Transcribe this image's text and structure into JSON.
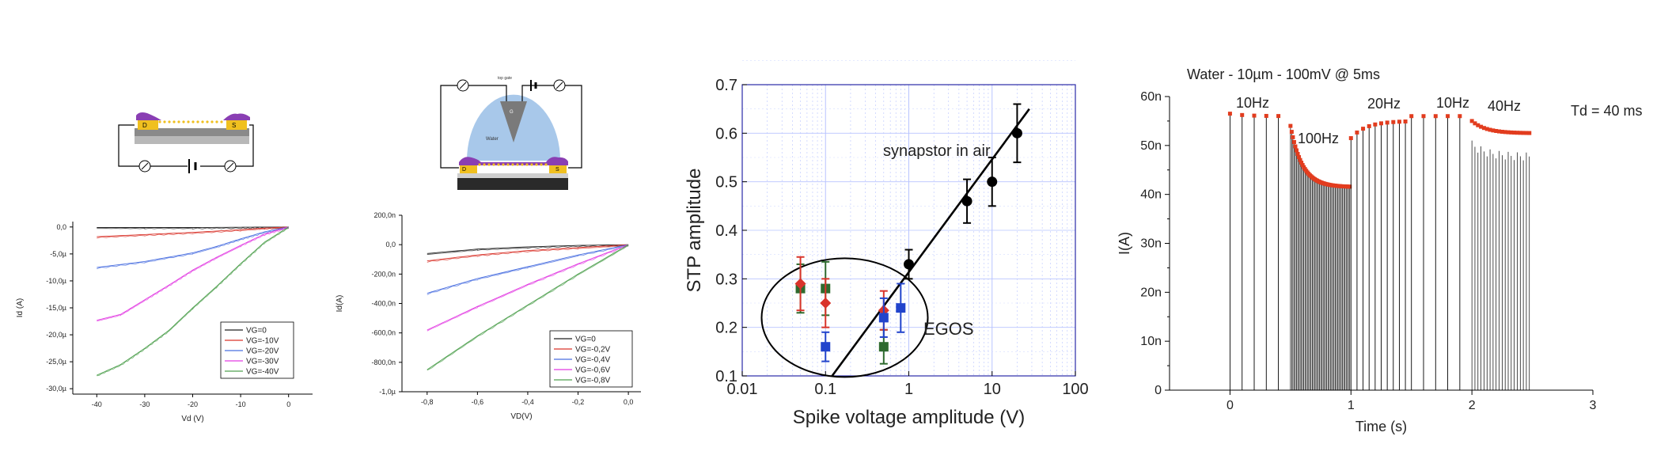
{
  "chart_data": [
    {
      "type": "line",
      "panel": "A",
      "schematic": {
        "electrode_labels": [
          "D",
          "S"
        ]
      },
      "xlabel": "Vd (V)",
      "ylabel": "Id (A)",
      "xlim": [
        -45,
        5
      ],
      "ylim": [
        -31,
        1
      ],
      "xticks": [
        -40,
        -30,
        -20,
        -10,
        0
      ],
      "xtick_labels": [
        "-40",
        "-30",
        "-20",
        "-10",
        "0"
      ],
      "yticks": [
        0,
        -5,
        -10,
        -15,
        -20,
        -25,
        -30
      ],
      "ytick_labels": [
        "0,0",
        "-5,0µ",
        "-10,0µ",
        "-15,0µ",
        "-20,0µ",
        "-25,0µ",
        "-30,0µ"
      ],
      "legend_position": "bottom-right",
      "grid": false,
      "series": [
        {
          "name": "VG=0",
          "color": "#222222",
          "x": [
            -40,
            -30,
            -20,
            -10,
            -5,
            0
          ],
          "y": [
            -0.1,
            -0.1,
            -0.1,
            -0.05,
            -0.02,
            0
          ]
        },
        {
          "name": "VG=-10V",
          "color": "#d9342b",
          "x": [
            -40,
            -30,
            -20,
            -10,
            -5,
            0
          ],
          "y": [
            -1.8,
            -1.4,
            -1.0,
            -0.5,
            -0.2,
            0
          ]
        },
        {
          "name": "VG=-20V",
          "color": "#4a6fe0",
          "x": [
            -40,
            -30,
            -20,
            -15,
            -10,
            -5,
            0
          ],
          "y": [
            -7.5,
            -6.4,
            -4.8,
            -3.6,
            -2.2,
            -0.9,
            0
          ]
        },
        {
          "name": "VG=-30V",
          "color": "#e23ae2",
          "x": [
            -40,
            -35,
            -30,
            -25,
            -20,
            -15,
            -10,
            -5,
            0
          ],
          "y": [
            -17.3,
            -16.2,
            -13.5,
            -10.8,
            -8.0,
            -5.6,
            -3.4,
            -1.3,
            0
          ]
        },
        {
          "name": "VG=-40V",
          "color": "#4fa04f",
          "x": [
            -40,
            -35,
            -30,
            -25,
            -20,
            -15,
            -10,
            -5,
            0
          ],
          "y": [
            -27.5,
            -25.5,
            -22.5,
            -19.2,
            -15.0,
            -11.0,
            -6.8,
            -2.8,
            0
          ]
        }
      ]
    },
    {
      "type": "line",
      "panel": "B",
      "schematic": {
        "labels": [
          "top gate",
          "G",
          "Water",
          "D",
          "S"
        ]
      },
      "xlabel": "VD(V)",
      "ylabel": "Id(A)",
      "xlim": [
        -0.9,
        0.05
      ],
      "ylim": [
        -1.0,
        0.2
      ],
      "xticks": [
        -0.8,
        -0.6,
        -0.4,
        -0.2,
        0.0
      ],
      "xtick_labels": [
        "-0,8",
        "-0,6",
        "-0,4",
        "-0,2",
        "0,0"
      ],
      "yticks": [
        0.2,
        0.0,
        -0.2,
        -0.4,
        -0.6,
        -0.8,
        -1.0
      ],
      "ytick_labels": [
        "200,0n",
        "0,0",
        "-200,0n",
        "-400,0n",
        "-600,0n",
        "-800,0n",
        "-1,0µ"
      ],
      "legend_position": "bottom-right",
      "grid": false,
      "series": [
        {
          "name": "VG=0",
          "color": "#222222",
          "x": [
            -0.8,
            -0.6,
            -0.4,
            -0.2,
            0.0
          ],
          "y": [
            -0.06,
            -0.03,
            -0.015,
            -0.005,
            0.0
          ]
        },
        {
          "name": "VG=-0,2V",
          "color": "#d9342b",
          "x": [
            -0.8,
            -0.6,
            -0.4,
            -0.2,
            0.0
          ],
          "y": [
            -0.11,
            -0.07,
            -0.04,
            -0.02,
            0.0
          ]
        },
        {
          "name": "VG=-0,4V",
          "color": "#4a6fe0",
          "x": [
            -0.8,
            -0.6,
            -0.4,
            -0.2,
            0.0
          ],
          "y": [
            -0.33,
            -0.23,
            -0.15,
            -0.07,
            0.0
          ]
        },
        {
          "name": "VG=-0,6V",
          "color": "#e23ae2",
          "x": [
            -0.8,
            -0.6,
            -0.4,
            -0.2,
            0.0
          ],
          "y": [
            -0.58,
            -0.42,
            -0.27,
            -0.13,
            0.0
          ]
        },
        {
          "name": "VG=-0,8V",
          "color": "#4fa04f",
          "x": [
            -0.8,
            -0.6,
            -0.4,
            -0.2,
            0.0
          ],
          "y": [
            -0.85,
            -0.62,
            -0.41,
            -0.2,
            0.0
          ]
        }
      ]
    },
    {
      "type": "scatter",
      "panel": "C",
      "xlabel": "Spike voltage amplitude (V)",
      "ylabel": "STP amplitude",
      "xscale": "log",
      "xlim": [
        0.01,
        100
      ],
      "ylim": [
        0.1,
        0.7
      ],
      "xticks": [
        0.01,
        0.1,
        1,
        10,
        100
      ],
      "xtick_labels": [
        "0.01",
        "0.1",
        "1",
        "10",
        "100"
      ],
      "yticks": [
        0.1,
        0.2,
        0.3,
        0.4,
        0.5,
        0.6,
        0.7
      ],
      "ytick_labels": [
        "0.1",
        "0.2",
        "0.3",
        "0.4",
        "0.5",
        "0.6",
        "0.7"
      ],
      "grid": true,
      "annotations": [
        "synapstor in air",
        "EGOS"
      ],
      "fit_line": {
        "x": [
          0.12,
          28
        ],
        "y": [
          0.1,
          0.65
        ]
      },
      "series": [
        {
          "marker": "circle",
          "color": "#000000",
          "x": [
            1,
            5,
            10,
            20
          ],
          "y": [
            0.33,
            0.46,
            0.5,
            0.6
          ],
          "err": [
            0.03,
            0.045,
            0.05,
            0.06
          ]
        },
        {
          "marker": "square",
          "color": "#2e6a2e",
          "x": [
            0.05,
            0.1,
            0.5
          ],
          "y": [
            0.28,
            0.28,
            0.16
          ],
          "err": [
            0.05,
            0.055,
            0.035
          ]
        },
        {
          "marker": "diamond",
          "color": "#d9342b",
          "x": [
            0.05,
            0.1,
            0.5
          ],
          "y": [
            0.29,
            0.25,
            0.235
          ],
          "err": [
            0.055,
            0.05,
            0.04
          ]
        },
        {
          "marker": "square",
          "color": "#2244cc",
          "x": [
            0.1,
            0.5,
            0.8
          ],
          "y": [
            0.16,
            0.22,
            0.24
          ],
          "err": [
            0.03,
            0.04,
            0.05
          ]
        }
      ]
    },
    {
      "type": "bar",
      "panel": "D",
      "title": "Water - 10µm - 100mV @ 5ms",
      "xlabel": "Time (s)",
      "ylabel": "I(A)",
      "xlim": [
        -0.5,
        3
      ],
      "ylim": [
        0,
        60
      ],
      "xticks": [
        0,
        1,
        2,
        3
      ],
      "xtick_labels": [
        "0",
        "1",
        "2",
        "3"
      ],
      "yticks": [
        0,
        10,
        20,
        30,
        40,
        50,
        60
      ],
      "ytick_labels": [
        "0",
        "10n",
        "20n",
        "30n",
        "40n",
        "50n",
        "60n"
      ],
      "annotations": [
        "10Hz",
        "100Hz",
        "20Hz",
        "10Hz",
        "40Hz",
        "Td = 40 ms"
      ],
      "segments": [
        {
          "label": "10Hz",
          "start": 0.0,
          "end": 0.45,
          "rate_hz": 10,
          "start_level": 56.5,
          "end_level": 56.0
        },
        {
          "label": "100Hz",
          "start": 0.5,
          "end": 0.99,
          "rate_hz": 100,
          "start_level": 54.0,
          "end_level": 41.5
        },
        {
          "label": "20Hz",
          "start": 1.0,
          "end": 1.48,
          "rate_hz": 20,
          "start_level": 51.5,
          "end_level": 55.0
        },
        {
          "label": "10Hz",
          "start": 1.5,
          "end": 1.95,
          "rate_hz": 10,
          "start_level": 56.0,
          "end_level": 56.0
        },
        {
          "label": "40Hz",
          "start": 2.0,
          "end": 2.48,
          "rate_hz": 40,
          "start_level": 55.0,
          "end_level": 52.5
        }
      ]
    }
  ]
}
